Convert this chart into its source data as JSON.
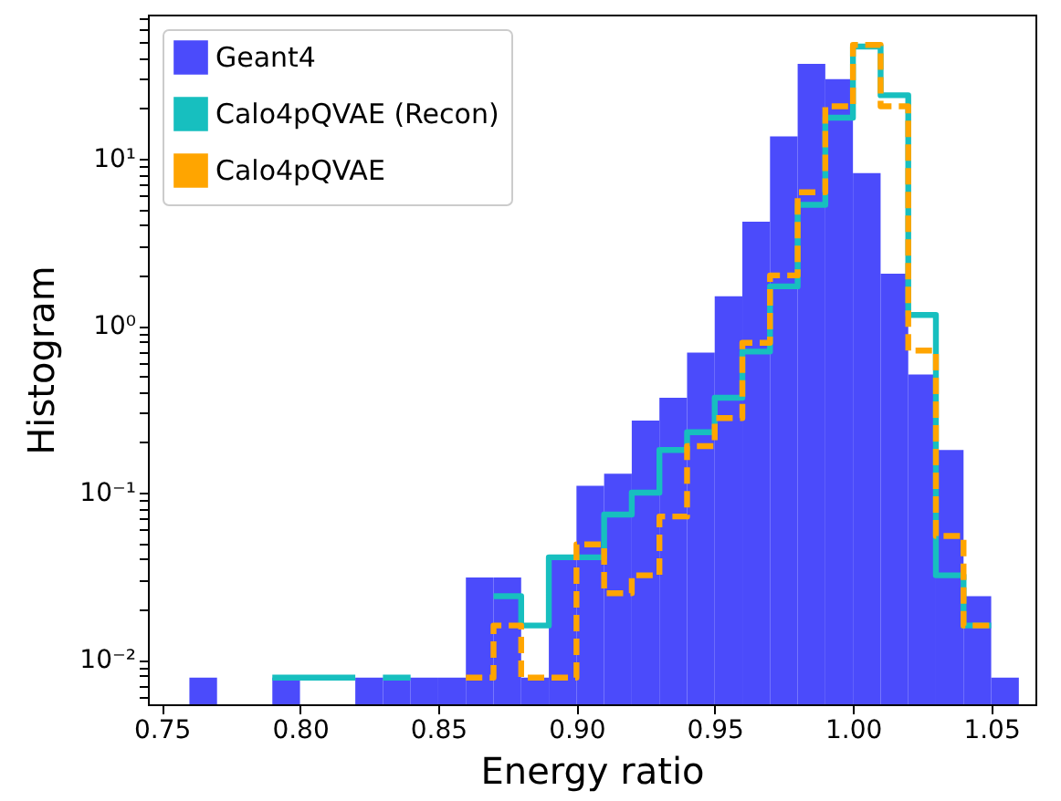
{
  "chart_data": {
    "type": "histogram",
    "xlabel": "Energy ratio",
    "ylabel": "Histogram",
    "bins": [
      0.76,
      0.77,
      0.78,
      0.79,
      0.8,
      0.81,
      0.82,
      0.83,
      0.84,
      0.85,
      0.86,
      0.87,
      0.88,
      0.89,
      0.9,
      0.91,
      0.92,
      0.93,
      0.94,
      0.95,
      0.96,
      0.97,
      0.98,
      0.99,
      1.0,
      1.01,
      1.02,
      1.03,
      1.04,
      1.05,
      1.06
    ],
    "series": [
      {
        "name": "Geant4",
        "type": "histogram",
        "color": "#4b4bfb",
        "values": [
          0.0078,
          null,
          null,
          0.0078,
          null,
          null,
          0.0078,
          0.0078,
          0.0078,
          0.0078,
          0.031,
          0.031,
          0.0078,
          0.041,
          0.11,
          0.13,
          0.27,
          0.37,
          0.69,
          1.5,
          4.2,
          13.6,
          37,
          30,
          8.2,
          2.05,
          0.51,
          0.18,
          0.024,
          0.0078
        ]
      },
      {
        "name": "Calo4pQVAE (Recon)",
        "type": "step",
        "x": [
          0.79,
          0.8,
          0.81,
          0.82,
          null,
          0.83,
          0.84,
          null,
          0.87,
          0.88,
          0.89,
          0.9,
          0.91,
          0.92,
          0.93,
          0.94,
          0.95,
          0.96,
          0.97,
          0.98,
          0.99,
          1.0,
          1.01,
          1.02,
          1.03,
          1.04,
          1.05
        ],
        "color": "#17bfbf",
        "line_style": "solid",
        "values": [
          0.0078,
          0.0078,
          0.0078,
          0.0078,
          null,
          0.0078,
          0.0078,
          null,
          0.024,
          0.016,
          0.041,
          0.041,
          0.074,
          0.1,
          0.18,
          0.23,
          0.37,
          0.7,
          1.72,
          5.3,
          17.6,
          47,
          24,
          1.16,
          0.032,
          0.016,
          0.016
        ]
      },
      {
        "name": "Calo4pQVAE",
        "type": "step",
        "x": [
          0.86,
          0.87,
          0.88,
          0.89,
          0.9,
          0.91,
          0.92,
          0.93,
          0.94,
          0.95,
          0.96,
          0.97,
          0.98,
          0.99,
          1.0,
          1.01,
          1.02,
          1.03,
          1.04,
          1.05
        ],
        "color": "#ffa500",
        "line_style": "dashed",
        "values": [
          0.0078,
          0.016,
          0.0078,
          0.0078,
          0.049,
          0.025,
          0.032,
          0.072,
          0.19,
          0.28,
          0.79,
          2.0,
          6.3,
          20.6,
          48,
          20.6,
          0.71,
          0.055,
          0.016,
          0.016
        ]
      }
    ],
    "log": "y",
    "xlim": [
      0.745,
      1.066
    ],
    "ylim": [
      0.0054,
      73
    ],
    "xticks": [
      {
        "value": 0.75,
        "label": "0.75"
      },
      {
        "value": 0.8,
        "label": "0.80"
      },
      {
        "value": 0.85,
        "label": "0.85"
      },
      {
        "value": 0.9,
        "label": "0.90"
      },
      {
        "value": 0.95,
        "label": "0.95"
      },
      {
        "value": 1.0,
        "label": "1.00"
      },
      {
        "value": 1.05,
        "label": "1.05"
      }
    ],
    "yticks": [
      {
        "value": 0.01,
        "label": "10⁻²"
      },
      {
        "value": 0.1,
        "label": "10⁻¹"
      },
      {
        "value": 1,
        "label": "10⁰"
      },
      {
        "value": 10,
        "label": "10¹"
      },
      {
        "value": 0.006,
        "label": null
      },
      {
        "value": 0.007,
        "label": null
      },
      {
        "value": 0.008,
        "label": null
      },
      {
        "value": 0.009,
        "label": null
      },
      {
        "value": 0.02,
        "label": null
      },
      {
        "value": 0.03,
        "label": null
      },
      {
        "value": 0.04,
        "label": null
      },
      {
        "value": 0.05,
        "label": null
      },
      {
        "value": 0.06,
        "label": null
      },
      {
        "value": 0.07,
        "label": null
      },
      {
        "value": 0.08,
        "label": null
      },
      {
        "value": 0.09,
        "label": null
      },
      {
        "value": 0.2,
        "label": null
      },
      {
        "value": 0.3,
        "label": null
      },
      {
        "value": 0.4,
        "label": null
      },
      {
        "value": 0.5,
        "label": null
      },
      {
        "value": 0.6,
        "label": null
      },
      {
        "value": 0.7,
        "label": null
      },
      {
        "value": 0.8,
        "label": null
      },
      {
        "value": 0.9,
        "label": null
      },
      {
        "value": 2,
        "label": null
      },
      {
        "value": 3,
        "label": null
      },
      {
        "value": 4,
        "label": null
      },
      {
        "value": 5,
        "label": null
      },
      {
        "value": 6,
        "label": null
      },
      {
        "value": 7,
        "label": null
      },
      {
        "value": 8,
        "label": null
      },
      {
        "value": 9,
        "label": null
      },
      {
        "value": 20,
        "label": null
      },
      {
        "value": 30,
        "label": null
      },
      {
        "value": 40,
        "label": null
      },
      {
        "value": 50,
        "label": null
      },
      {
        "value": 60,
        "label": null
      },
      {
        "value": 70,
        "label": null
      }
    ],
    "grid": false,
    "legend": "top left"
  }
}
